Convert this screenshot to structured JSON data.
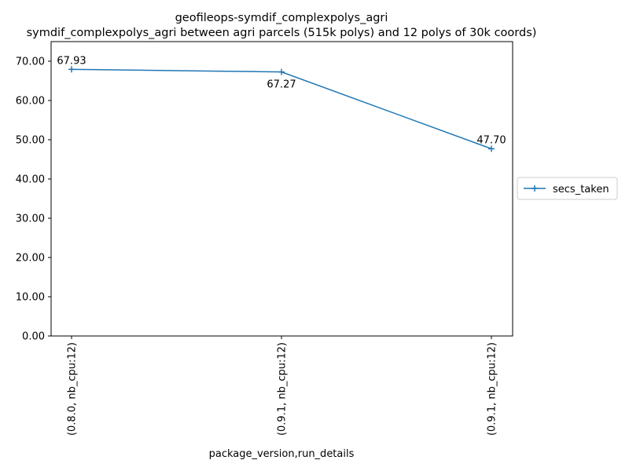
{
  "chart_data": {
    "type": "line",
    "title": "geofileops-symdif_complexpolys_agri",
    "subtitle": "symdif_complexpolys_agri between agri parcels (515k polys) and 12 polys of 30k coords)",
    "xlabel": "package_version,run_details",
    "ylabel": "",
    "categories": [
      "(0.8.0, nb_cpu:12)",
      "(0.9.1, nb_cpu:12)",
      "(0.9.1, nb_cpu:12)"
    ],
    "series": [
      {
        "name": "secs_taken",
        "values": [
          67.93,
          67.27,
          47.7
        ],
        "data_labels": [
          "67.93",
          "67.27",
          "47.70"
        ],
        "color": "#1f77b4",
        "marker": "plus"
      }
    ],
    "ylim": [
      0,
      75
    ],
    "yticks": [
      0,
      10,
      20,
      30,
      40,
      50,
      60,
      70
    ],
    "ytick_labels": [
      "0.00",
      "10.00",
      "20.00",
      "30.00",
      "40.00",
      "50.00",
      "60.00",
      "70.00"
    ],
    "grid": false,
    "legend_placement": "right-outside"
  }
}
